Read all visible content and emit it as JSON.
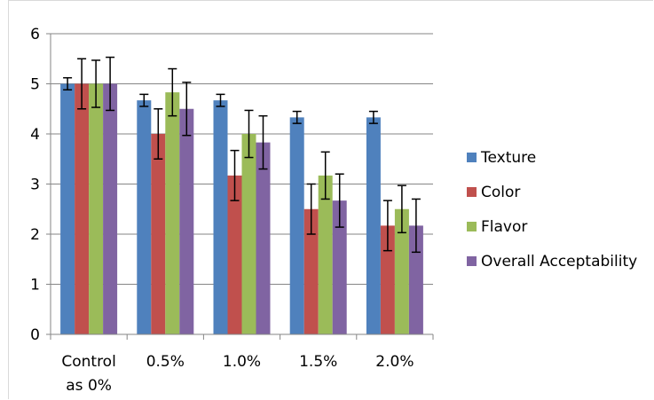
{
  "chart_data": {
    "type": "bar",
    "categories": [
      "Control as 0%",
      "0.5%",
      "1.0%",
      "1.5%",
      "2.0%"
    ],
    "category_lines": [
      [
        "Control",
        "as 0%"
      ],
      [
        "0.5%"
      ],
      [
        "1.0%"
      ],
      [
        "1.5%"
      ],
      [
        "2.0%"
      ]
    ],
    "series": [
      {
        "name": "Texture",
        "color": "#4f81bd",
        "values": [
          5.0,
          4.67,
          4.67,
          4.33,
          4.33
        ],
        "errors": [
          0.12,
          0.12,
          0.12,
          0.12,
          0.12
        ]
      },
      {
        "name": "Color",
        "color": "#c0504d",
        "values": [
          5.0,
          4.0,
          3.17,
          2.5,
          2.17
        ],
        "errors": [
          0.5,
          0.5,
          0.5,
          0.5,
          0.5
        ]
      },
      {
        "name": "Flavor",
        "color": "#9bbb59",
        "values": [
          5.0,
          4.83,
          4.0,
          3.17,
          2.5
        ],
        "errors": [
          0.47,
          0.47,
          0.47,
          0.47,
          0.47
        ]
      },
      {
        "name": "Overall Acceptability",
        "color": "#8064a2",
        "values": [
          5.0,
          4.5,
          3.83,
          2.67,
          2.17
        ],
        "errors": [
          0.53,
          0.53,
          0.53,
          0.53,
          0.53
        ]
      }
    ],
    "ylim": [
      0,
      6
    ],
    "yticks": [
      "0",
      "1",
      "2",
      "3",
      "4",
      "5",
      "6"
    ],
    "grid": true,
    "legend_position": "right",
    "title": "",
    "xlabel": "",
    "ylabel": ""
  }
}
